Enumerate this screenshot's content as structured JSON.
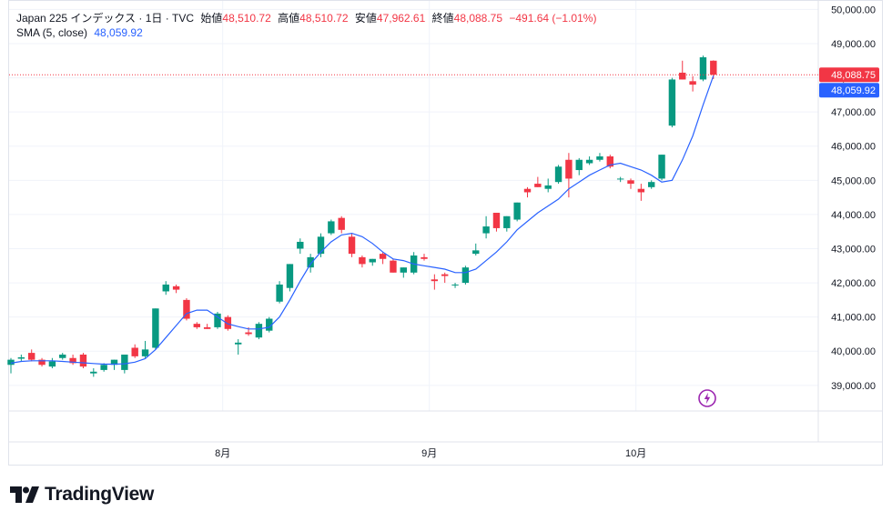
{
  "legend": {
    "symbol": "Japan 225 インデックス · 1日 · TVC",
    "open_label": "始値",
    "open": "48,510.72",
    "high_label": "高値",
    "high": "48,510.72",
    "low_label": "安値",
    "low": "47,962.61",
    "close_label": "終値",
    "close": "48,088.75",
    "change": "−491.64 (−1.01%)",
    "sma_label": "SMA (5, close)",
    "sma_value": "48,059.92"
  },
  "price_tags": {
    "close": "48,088.75",
    "sma": "48,059.92"
  },
  "brand": {
    "name": "TradingView"
  },
  "icons": {
    "flash": "lightning-bolt-icon",
    "logo": "tradingview-logo-icon"
  },
  "colors": {
    "up": "#089981",
    "down": "#f23645",
    "sma": "#2962ff",
    "grid": "#f0f3fa",
    "flash": "#9c27b0"
  },
  "chart_data": {
    "type": "candlestick",
    "title": "Japan 225 インデックス · 1日 · TVC",
    "y_ticks": [
      39000,
      40000,
      41000,
      42000,
      43000,
      44000,
      45000,
      46000,
      47000,
      48000,
      49000,
      50000
    ],
    "y_tick_labels": [
      "39,000.00",
      "40,000.00",
      "41,000.00",
      "42,000.00",
      "43,000.00",
      "44,000.00",
      "45,000.00",
      "46,000.00",
      "47,000.00",
      "48,000.00",
      "49,000.00",
      "50,000.00"
    ],
    "ylim": [
      38250,
      50250
    ],
    "x_labels": [
      {
        "label": "8月",
        "index": 21
      },
      {
        "label": "9月",
        "index": 41
      },
      {
        "label": "10月",
        "index": 61
      }
    ],
    "candles": [
      [
        39600,
        39800,
        39350,
        39750
      ],
      [
        39780,
        39900,
        39700,
        39820
      ],
      [
        39950,
        40050,
        39700,
        39750
      ],
      [
        39750,
        39800,
        39550,
        39600
      ],
      [
        39550,
        39800,
        39500,
        39700
      ],
      [
        39800,
        39950,
        39750,
        39900
      ],
      [
        39800,
        39900,
        39600,
        39650
      ],
      [
        39900,
        39950,
        39500,
        39550
      ],
      [
        39350,
        39500,
        39250,
        39400
      ],
      [
        39450,
        39650,
        39400,
        39600
      ],
      [
        39600,
        39750,
        39450,
        39750
      ],
      [
        39450,
        39900,
        39350,
        39900
      ],
      [
        40100,
        40200,
        39800,
        39850
      ],
      [
        39850,
        40300,
        39800,
        40050
      ],
      [
        40100,
        41250,
        40050,
        41250
      ],
      [
        41750,
        42050,
        41650,
        41950
      ],
      [
        41900,
        41950,
        41700,
        41800
      ],
      [
        41500,
        41550,
        40900,
        40950
      ],
      [
        40800,
        40850,
        40650,
        40700
      ],
      [
        40700,
        40800,
        40650,
        40650
      ],
      [
        40700,
        41150,
        40650,
        41100
      ],
      [
        41000,
        41050,
        40600,
        40650
      ],
      [
        40200,
        40350,
        39900,
        40250
      ],
      [
        40550,
        40700,
        40450,
        40500
      ],
      [
        40400,
        40850,
        40350,
        40800
      ],
      [
        40600,
        41000,
        40550,
        40950
      ],
      [
        41450,
        42050,
        41400,
        41950
      ],
      [
        41850,
        42550,
        41750,
        42550
      ],
      [
        43000,
        43300,
        42850,
        43200
      ],
      [
        42450,
        42850,
        42300,
        42750
      ],
      [
        42850,
        43450,
        42750,
        43350
      ],
      [
        43450,
        43850,
        43400,
        43800
      ],
      [
        43900,
        43950,
        43450,
        43550
      ],
      [
        43350,
        43450,
        42750,
        42850
      ],
      [
        42750,
        42800,
        42450,
        42550
      ],
      [
        42600,
        42700,
        42500,
        42700
      ],
      [
        42850,
        42900,
        42550,
        42700
      ],
      [
        42650,
        42700,
        42300,
        42300
      ],
      [
        42300,
        42450,
        42150,
        42450
      ],
      [
        42300,
        42900,
        42250,
        42800
      ],
      [
        42750,
        42850,
        42650,
        42700
      ],
      [
        42100,
        42250,
        41800,
        42050
      ],
      [
        42250,
        42300,
        42000,
        42200
      ],
      [
        41950,
        42000,
        41850,
        41950
      ],
      [
        42000,
        42500,
        41950,
        42450
      ],
      [
        42850,
        43150,
        42800,
        42950
      ],
      [
        43450,
        43950,
        43300,
        43650
      ],
      [
        44050,
        44050,
        43500,
        43600
      ],
      [
        43600,
        43950,
        43500,
        43950
      ],
      [
        43850,
        44350,
        43800,
        44350
      ],
      [
        44750,
        44800,
        44500,
        44650
      ],
      [
        44900,
        45100,
        44800,
        44800
      ],
      [
        44750,
        45050,
        44650,
        44850
      ],
      [
        44950,
        45450,
        44900,
        45400
      ],
      [
        45600,
        45800,
        44500,
        45050
      ],
      [
        45300,
        45650,
        45150,
        45600
      ],
      [
        45500,
        45700,
        45450,
        45600
      ],
      [
        45600,
        45800,
        45550,
        45700
      ],
      [
        45700,
        45750,
        45350,
        45400
      ],
      [
        45050,
        45100,
        44950,
        45050
      ],
      [
        45000,
        45050,
        44750,
        44900
      ],
      [
        44750,
        44900,
        44400,
        44650
      ],
      [
        44800,
        45000,
        44750,
        44950
      ],
      [
        45050,
        45750,
        45000,
        45750
      ],
      [
        46600,
        48000,
        46550,
        47950
      ],
      [
        48150,
        48500,
        47950,
        47950
      ],
      [
        47900,
        48050,
        47600,
        47800
      ],
      [
        47950,
        48650,
        47900,
        48600
      ],
      [
        48500,
        48510.72,
        47962.61,
        48088.75
      ]
    ],
    "sma": {
      "name": "SMA (5, close)",
      "values": [
        39650,
        39700,
        39720,
        39720,
        39720,
        39700,
        39680,
        39660,
        39640,
        39620,
        39620,
        39630,
        39680,
        39780,
        40050,
        40400,
        40750,
        41100,
        41200,
        41200,
        41000,
        40800,
        40720,
        40650,
        40650,
        40700,
        41000,
        41500,
        42050,
        42550,
        42900,
        43200,
        43400,
        43450,
        43350,
        43150,
        42900,
        42700,
        42650,
        42550,
        42500,
        42450,
        42400,
        42300,
        42300,
        42400,
        42650,
        42900,
        43200,
        43550,
        43800,
        44050,
        44250,
        44450,
        44750,
        44950,
        45150,
        45300,
        45450,
        45500,
        45400,
        45300,
        45150,
        44950,
        45000,
        45600,
        46300,
        47200,
        48059.92
      ]
    }
  }
}
